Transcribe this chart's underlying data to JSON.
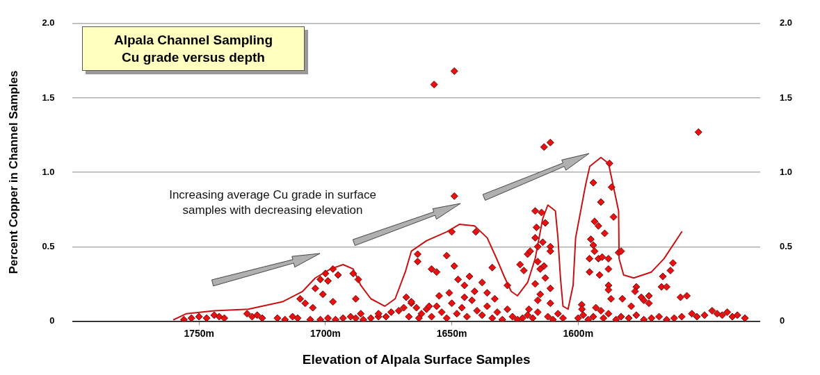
{
  "chart_data": {
    "type": "scatter",
    "title": "Alpala Channel Sampling",
    "subtitle": "Cu grade versus depth",
    "xlabel": "Elevation of Alpala Surface Samples",
    "ylabel": "Percent Copper in Channel Samples",
    "annotations": [
      "Increasing average Cu grade in surface samples with decreasing elevation"
    ],
    "xlim": [
      1800,
      1528
    ],
    "xticks": [
      {
        "value": 1750,
        "label": "1750m"
      },
      {
        "value": 1700,
        "label": "1700m"
      },
      {
        "value": 1650,
        "label": "1650m"
      },
      {
        "value": 1600,
        "label": "1600m"
      }
    ],
    "ylim": [
      0,
      2
    ],
    "yticks": [
      0,
      0.5,
      {
        "value": 1,
        "label": "1.0"
      },
      1.5,
      {
        "value": 2,
        "label": "2.0"
      }
    ],
    "y2lim": [
      0,
      2
    ],
    "y2ticks": [
      0,
      0.5,
      {
        "value": 1,
        "label": "1.0"
      },
      1.5,
      {
        "value": 2,
        "label": "2.0"
      }
    ],
    "grid": "y",
    "legend": false,
    "series": [
      {
        "color": "#e81010",
        "marker": "diamond",
        "x": [
          1756,
          1753,
          1750,
          1747,
          1744,
          1742,
          1740,
          1731,
          1729,
          1727,
          1725,
          1719,
          1716,
          1713,
          1711,
          1710,
          1708,
          1705,
          1704,
          1702,
          1700,
          1699,
          1697,
          1695,
          1701,
          1697,
          1706,
          1702,
          1699,
          1696,
          1693,
          1690,
          1688,
          1685,
          1682,
          1679,
          1689,
          1687,
          1688,
          1686,
          1679,
          1676,
          1674,
          1671,
          1668,
          1666,
          1664,
          1667,
          1663,
          1669,
          1663.5,
          1663.5,
          1650,
          1640.5,
          1649,
          1657,
          1649,
          1613.5,
          1611,
          1652,
          1658,
          1656,
          1649,
          1634,
          1647.5,
          1643,
          1645,
          1638,
          1628,
          1623,
          1621.5,
          1620,
          1617,
          1614.5,
          1613,
          1616.5,
          1617,
          1614,
          1611,
          1616,
          1619,
          1611,
          1616,
          1613.5,
          1615,
          1613,
          1617,
          1611,
          1615,
          1611,
          1616,
          1619.5,
          1662,
          1660,
          1658,
          1656,
          1654,
          1652,
          1650,
          1648,
          1646,
          1644,
          1642,
          1640,
          1638,
          1636,
          1634,
          1632,
          1630,
          1628,
          1626,
          1624,
          1622,
          1620,
          1618,
          1616,
          1612,
          1610,
          1608,
          1606,
          1655,
          1651,
          1645,
          1641,
          1636,
          1633,
          1666,
          1659,
          1587.6,
          1594,
          1586.8,
          1591,
          1586,
          1593.5,
          1592,
          1589.5,
          1595,
          1594,
          1593.5,
          1595.5,
          1592,
          1590.5,
          1588,
          1584,
          1583,
          1595.5,
          1591.5,
          1588,
          1588,
          1588,
          1587,
          1582.5,
          1577,
          1577.5,
          1575,
          1572,
          1574,
          1572,
          1567,
          1565,
          1566.5,
          1563.5,
          1562.5,
          1559.5,
          1557,
          1598.6,
          1598.5,
          1593,
          1591,
          1579,
          1552.4,
          1600,
          1598,
          1596,
          1594,
          1590,
          1588,
          1585,
          1583,
          1580,
          1577,
          1574,
          1571,
          1568,
          1565,
          1562,
          1559,
          1555,
          1553,
          1550,
          1547,
          1545,
          1543,
          1541,
          1539,
          1537,
          1534
        ],
        "values": [
          0.01,
          0.02,
          0.03,
          0.02,
          0.04,
          0.03,
          0.02,
          0.05,
          0.03,
          0.04,
          0.02,
          0.02,
          0.01,
          0.03,
          0.02,
          0.15,
          0.12,
          0.09,
          0.22,
          0.28,
          0.32,
          0.27,
          0.35,
          0.31,
          0.18,
          0.13,
          0.01,
          0.01,
          0.02,
          0.01,
          0.02,
          0.03,
          0.02,
          0.01,
          0.02,
          0.03,
          0.32,
          0.28,
          0.15,
          0.05,
          0.05,
          0.03,
          0.06,
          0.07,
          0.16,
          0.12,
          0.09,
          0.03,
          0.02,
          0.09,
          0.45,
          0.4,
          0.6,
          0.6,
          1.68,
          1.59,
          0.84,
          1.17,
          1.2,
          0.44,
          0.35,
          0.33,
          0.37,
          0.36,
          0.28,
          0.3,
          0.24,
          0.26,
          0.24,
          0.38,
          0.34,
          0.45,
          0.74,
          0.73,
          0.66,
          0.63,
          0.56,
          0.53,
          0.5,
          0.5,
          0.47,
          0.47,
          0.4,
          0.37,
          0.35,
          0.29,
          0.25,
          0.22,
          0.18,
          0.12,
          0.14,
          0.08,
          0.05,
          0.08,
          0.03,
          0.1,
          0.06,
          0.02,
          0.12,
          0.05,
          0.09,
          0.03,
          0.14,
          0.07,
          0.04,
          0.1,
          0.02,
          0.06,
          0.01,
          0.08,
          0.03,
          0.01,
          0.02,
          0.04,
          0.02,
          0.06,
          0.03,
          0.01,
          0.05,
          0.02,
          0.17,
          0.19,
          0.16,
          0.2,
          0.19,
          0.15,
          0.13,
          0.1,
          1.06,
          0.93,
          0.9,
          0.8,
          0.7,
          0.67,
          0.64,
          0.59,
          0.55,
          0.51,
          0.47,
          0.42,
          0.42,
          0.43,
          0.42,
          0.46,
          0.47,
          0.33,
          0.31,
          0.35,
          0.24,
          0.21,
          0.15,
          0.15,
          0.23,
          0.2,
          0.16,
          0.17,
          0.14,
          0.12,
          0.23,
          0.23,
          0.3,
          0.34,
          0.39,
          0.16,
          0.17,
          0.11,
          0.08,
          0.09,
          0.07,
          0.1,
          1.27,
          0.02,
          0.04,
          0.01,
          0.03,
          0.02,
          0.05,
          0.01,
          0.03,
          0.02,
          0.04,
          0.01,
          0.02,
          0.03,
          0.01,
          0.02,
          0.03,
          0.05,
          0.03,
          0.04,
          0.07,
          0.05,
          0.04,
          0.06,
          0.03,
          0.04,
          0.02
        ]
      },
      {
        "type": "line",
        "color": "#c81010",
        "marker": "none",
        "x": [
          1760,
          1755,
          1744,
          1730.5,
          1717,
          1709,
          1704,
          1698,
          1693,
          1689,
          1686,
          1682,
          1676.5,
          1672.4,
          1668.4,
          1666,
          1660,
          1652,
          1647,
          1641,
          1636,
          1632,
          1629,
          1626.5,
          1624,
          1620,
          1617,
          1614,
          1612,
          1609,
          1608,
          1607,
          1606,
          1604,
          1602,
          1601,
          1597,
          1595.4,
          1591,
          1588,
          1584,
          1583.8,
          1582,
          1578,
          1571,
          1566,
          1559
        ],
        "values": [
          0.01,
          0.05,
          0.07,
          0.08,
          0.13,
          0.2,
          0.29,
          0.35,
          0.38,
          0.35,
          0.24,
          0.15,
          0.1,
          0.15,
          0.33,
          0.47,
          0.54,
          0.6,
          0.65,
          0.64,
          0.56,
          0.41,
          0.29,
          0.2,
          0.17,
          0.26,
          0.42,
          0.69,
          0.78,
          0.74,
          0.56,
          0.29,
          0.1,
          0.08,
          0.24,
          0.56,
          0.92,
          1.04,
          1.1,
          1.06,
          0.74,
          0.42,
          0.31,
          0.29,
          0.33,
          0.42,
          0.6
        ]
      }
    ]
  }
}
